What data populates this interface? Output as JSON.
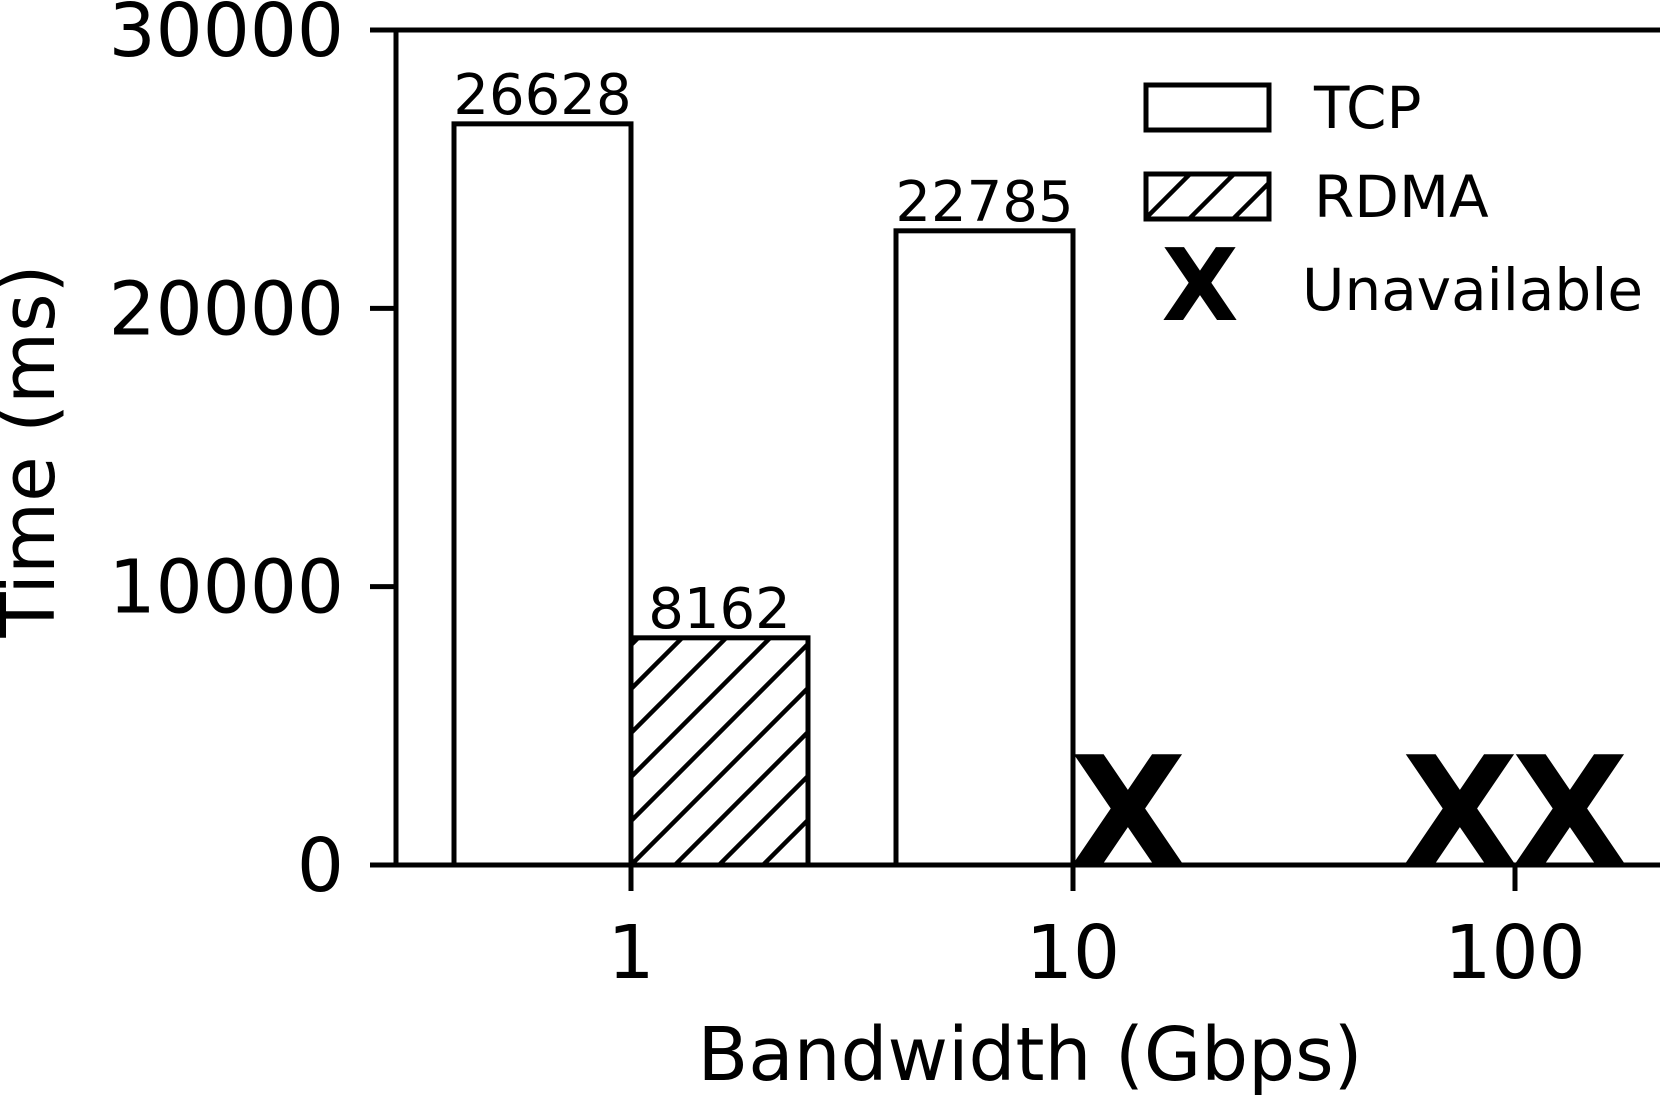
{
  "chart_data": {
    "type": "bar",
    "categories": [
      "1",
      "10",
      "100"
    ],
    "xlabel": "Bandwidth (Gbps)",
    "ylabel": "Time (ms)",
    "ylim": [
      0,
      30000
    ],
    "yticks": [
      0,
      10000,
      20000,
      30000
    ],
    "grid": false,
    "legend_placement": "top-right",
    "series": [
      {
        "name": "TCP",
        "style": "plain",
        "values": [
          26628,
          22785,
          null
        ],
        "labels": [
          "26628",
          "22785",
          ""
        ]
      },
      {
        "name": "RDMA",
        "style": "hatched",
        "values": [
          8162,
          null,
          null
        ],
        "labels": [
          "8162",
          "",
          ""
        ]
      }
    ],
    "unavailable_marker": "X",
    "unavailable_label": "Unavailable",
    "unavailable": [
      {
        "category": "10",
        "series": "RDMA"
      },
      {
        "category": "100",
        "series": "TCP"
      },
      {
        "category": "100",
        "series": "RDMA"
      }
    ],
    "colors": {
      "bar_fill": "#ffffff",
      "edge": "#000000"
    }
  }
}
